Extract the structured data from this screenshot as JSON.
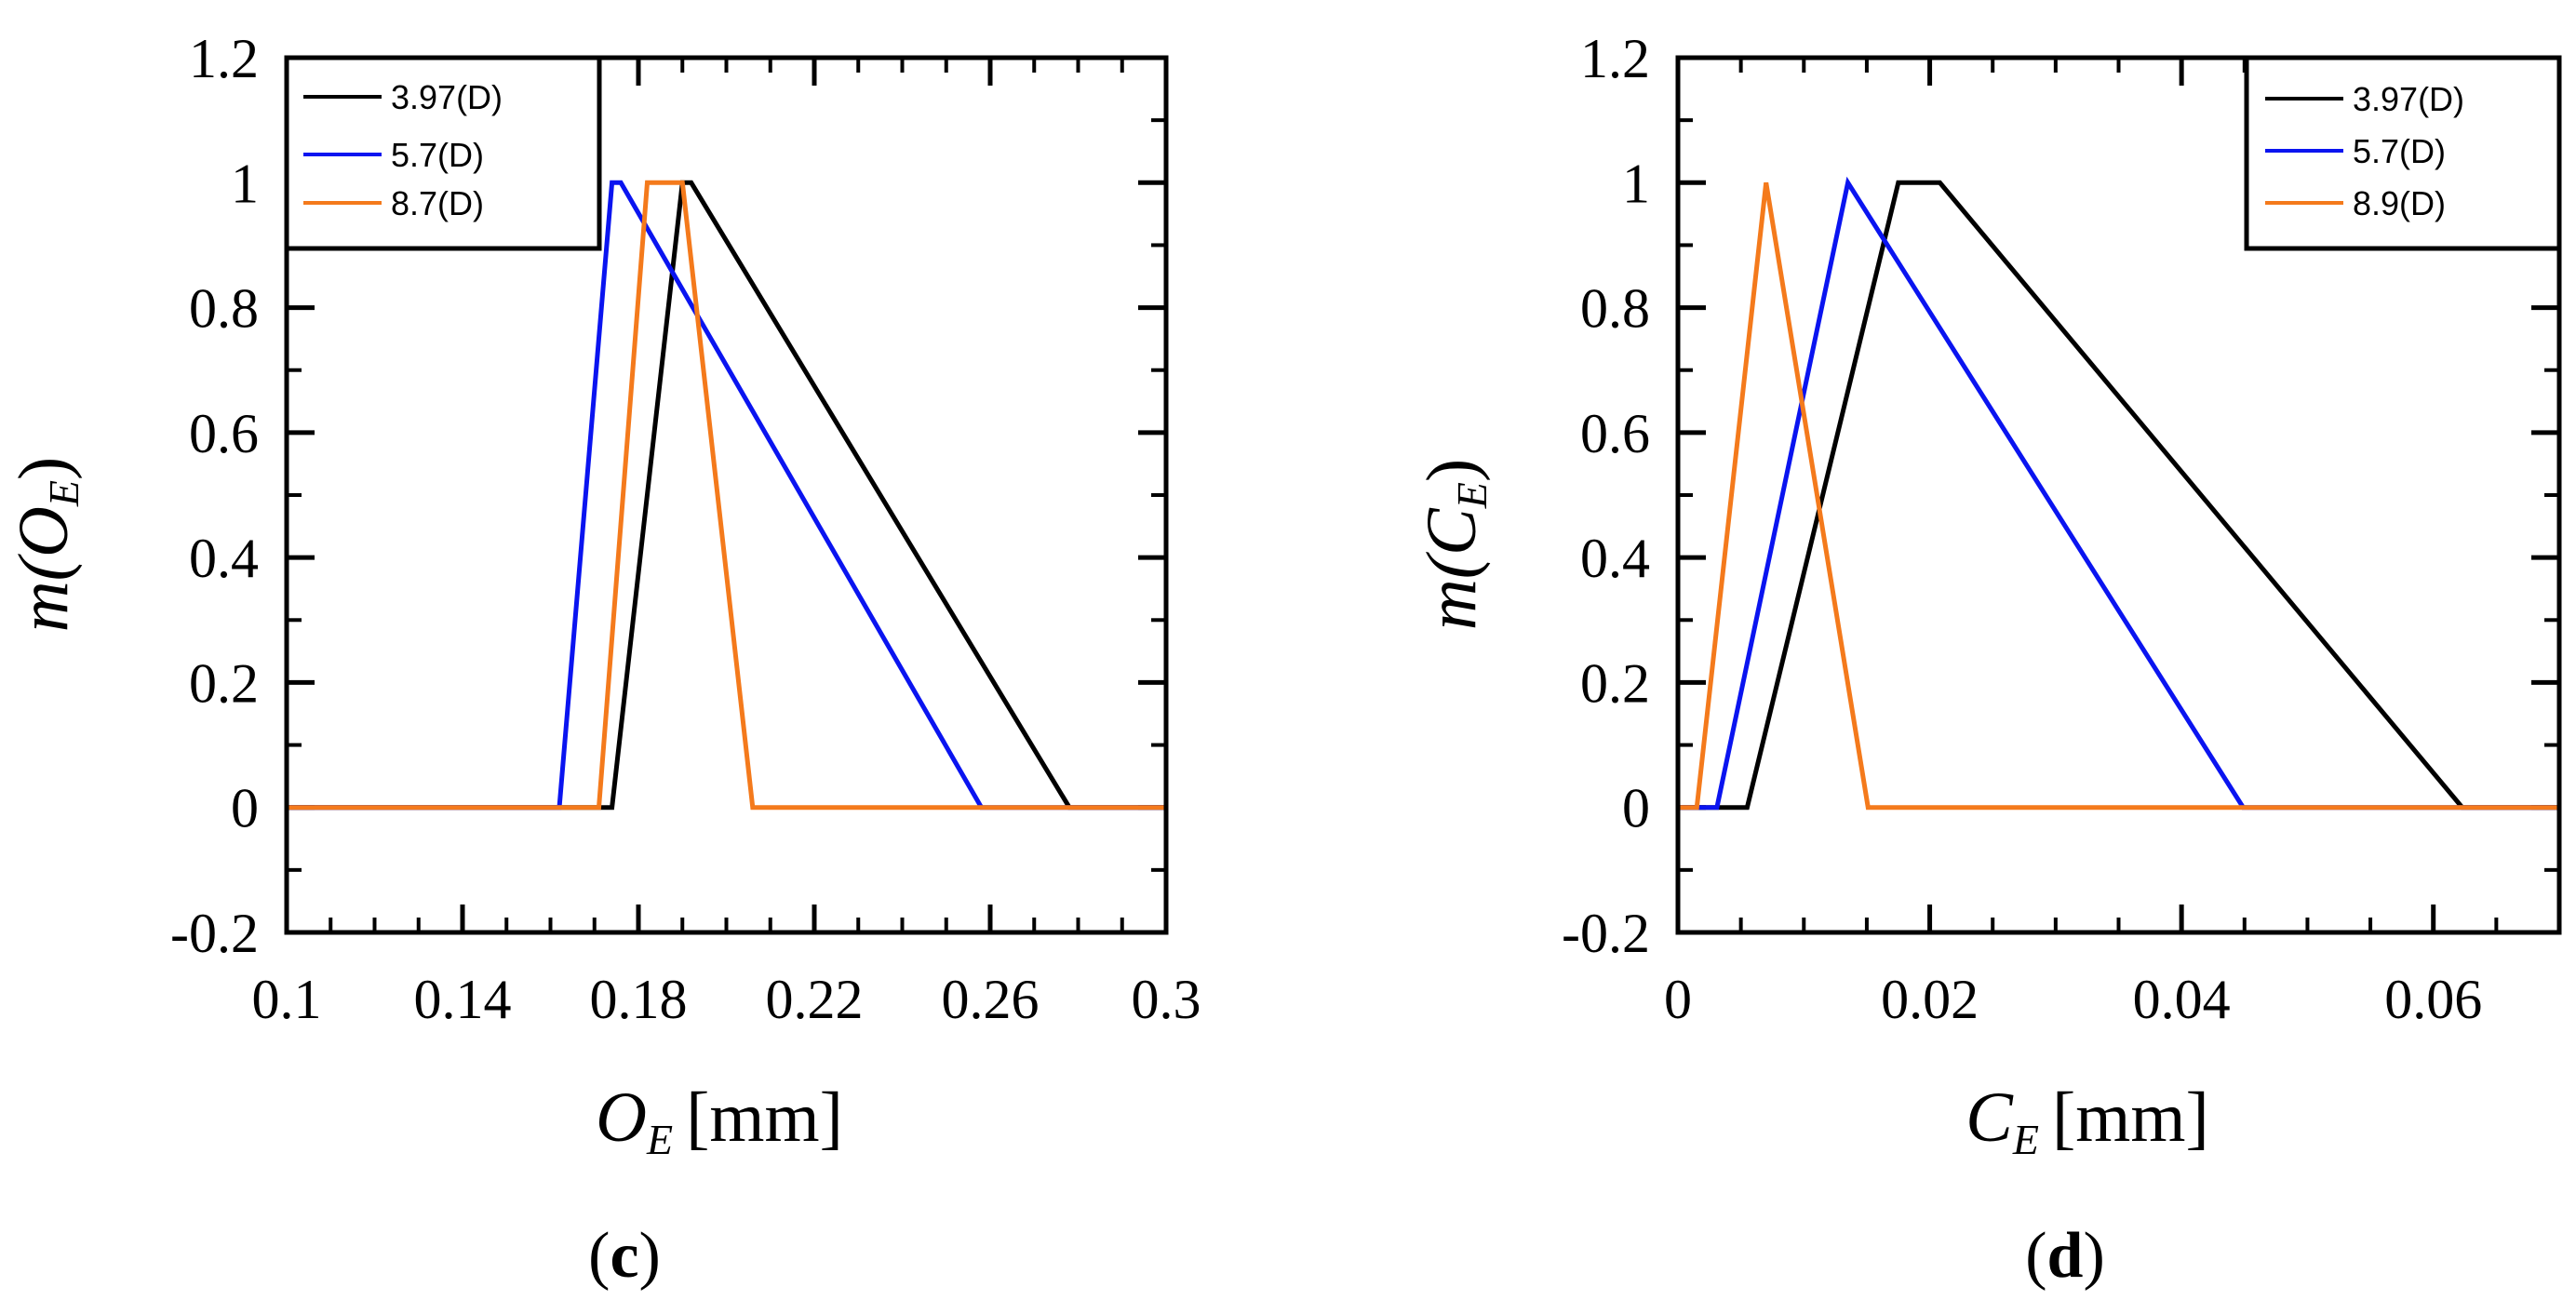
{
  "chart_data": [
    {
      "type": "line",
      "panel": "c",
      "xlabel_var": "O",
      "xlabel_sub": "E",
      "xlabel_unit": "[mm]",
      "ylabel_func": "m(",
      "ylabel_var": "O",
      "ylabel_sub": "E",
      "ylabel_close": ")",
      "xlim": [
        0.1,
        0.3
      ],
      "ylim": [
        -0.2,
        1.2
      ],
      "xticks": [
        0.1,
        0.14,
        0.18,
        0.22,
        0.26,
        0.3
      ],
      "xtick_labels": [
        "0.1",
        "0.14",
        "0.18",
        "0.22",
        "0.26",
        "0.3"
      ],
      "xminor_step": 0.01,
      "yticks": [
        -0.2,
        0,
        0.2,
        0.4,
        0.6,
        0.8,
        1,
        1.2
      ],
      "ytick_labels": [
        "-0.2",
        "0",
        "0.2",
        "0.4",
        "0.6",
        "0.8",
        "1",
        "1.2"
      ],
      "yminor_step": 0.1,
      "legend_position": "top-left",
      "series": [
        {
          "name": "3.97(D)",
          "color": "#000000",
          "x": [
            0.1,
            0.171,
            0.174,
            0.19,
            0.192,
            0.278,
            0.3
          ],
          "y": [
            0,
            0,
            0,
            1,
            1,
            0,
            0
          ]
        },
        {
          "name": "5.7(D)",
          "color": "#0a14f0",
          "x": [
            0.1,
            0.162,
            0.174,
            0.176,
            0.258,
            0.3
          ],
          "y": [
            0,
            0,
            1,
            1,
            0,
            0
          ]
        },
        {
          "name": "8.7(D)",
          "color": "#f47a1c",
          "x": [
            0.1,
            0.168,
            0.171,
            0.182,
            0.19,
            0.206,
            0.3
          ],
          "y": [
            0,
            0,
            0,
            1,
            1,
            0,
            0
          ]
        }
      ]
    },
    {
      "type": "line",
      "panel": "d",
      "xlabel_var": "C",
      "xlabel_sub": "E",
      "xlabel_unit": "[mm]",
      "ylabel_func": "m(",
      "ylabel_var": "C",
      "ylabel_sub": "E",
      "ylabel_close": ")",
      "xlim": [
        0,
        0.07
      ],
      "ylim": [
        -0.2,
        1.2
      ],
      "xticks": [
        0,
        0.02,
        0.04,
        0.06
      ],
      "xtick_labels": [
        "0",
        "0.02",
        "0.04",
        "0.06"
      ],
      "xminor_step": 0.005,
      "yticks": [
        -0.2,
        0,
        0.2,
        0.4,
        0.6,
        0.8,
        1,
        1.2
      ],
      "ytick_labels": [
        "-0.2",
        "0",
        "0.2",
        "0.4",
        "0.6",
        "0.8",
        "1",
        "1.2"
      ],
      "yminor_step": 0.1,
      "legend_position": "top-right",
      "series": [
        {
          "name": "3.97(D)",
          "color": "#000000",
          "x": [
            0,
            0.0055,
            0.0175,
            0.0208,
            0.0623,
            0.07
          ],
          "y": [
            0,
            0,
            1,
            1,
            0,
            0
          ]
        },
        {
          "name": "5.7(D)",
          "color": "#0a14f0",
          "x": [
            0,
            0.0031,
            0.0135,
            0.0449,
            0.07
          ],
          "y": [
            0,
            0,
            1,
            0,
            0
          ]
        },
        {
          "name": "8.9(D)",
          "color": "#f47a1c",
          "x": [
            0,
            0.0015,
            0.007,
            0.0151,
            0.07
          ],
          "y": [
            0,
            0,
            1,
            0,
            0
          ]
        }
      ]
    }
  ]
}
